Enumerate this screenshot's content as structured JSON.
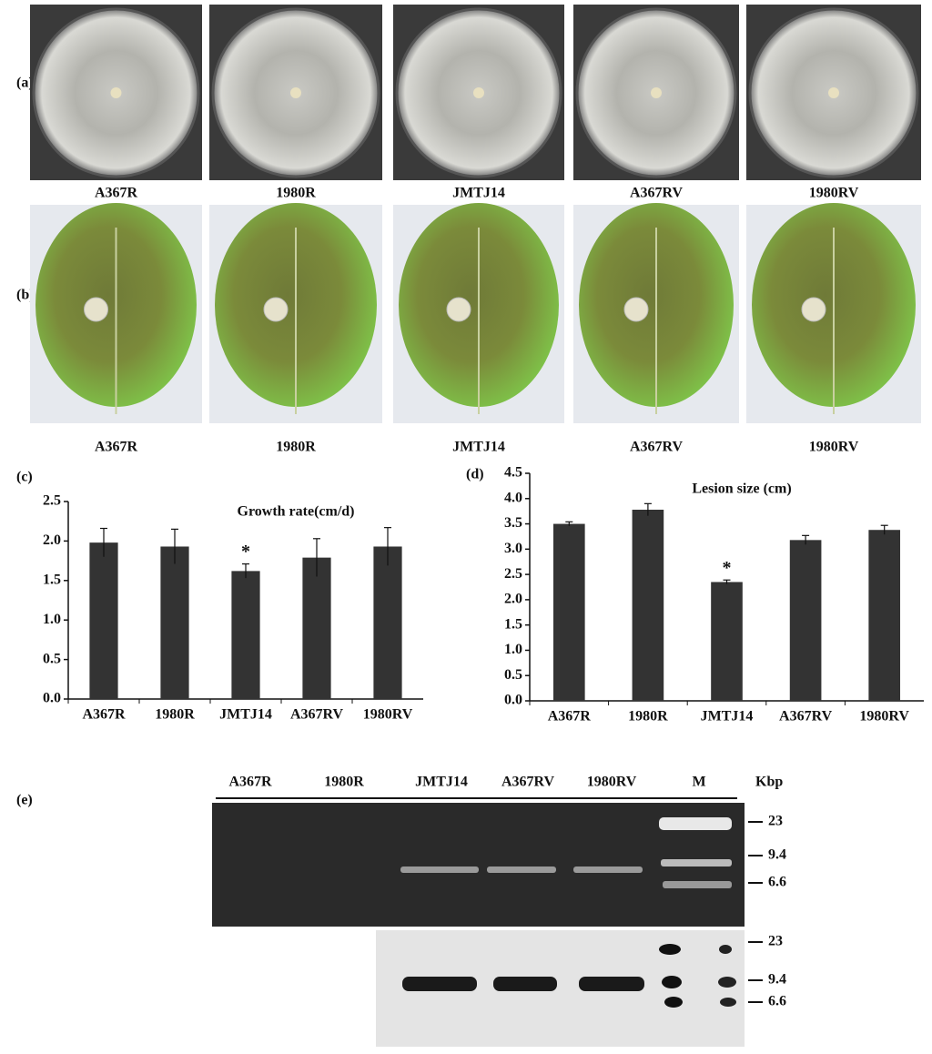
{
  "panels": {
    "a": {
      "label": "(a)",
      "strains": [
        "A367R",
        "1980R",
        "JMTJ14",
        "A367RV",
        "1980RV"
      ]
    },
    "b": {
      "label": "(b)",
      "strains": [
        "A367R",
        "1980R",
        "JMTJ14",
        "A367RV",
        "1980RV"
      ]
    },
    "e": {
      "label": "(e)",
      "lanes": [
        "A367R",
        "1980R",
        "JMTJ14",
        "A367RV",
        "1980RV",
        "M"
      ],
      "unit": "Kbp",
      "top_sizes": [
        "23",
        "9.4",
        "6.6"
      ],
      "bottom_sizes": [
        "23",
        "9.4",
        "6.6"
      ]
    }
  },
  "chart_data": [
    {
      "type": "bar",
      "panel_label": "(c)",
      "title": "Growth rate(cm/d)",
      "categories": [
        "A367R",
        "1980R",
        "JMTJ14",
        "A367RV",
        "1980RV"
      ],
      "values": [
        1.98,
        1.93,
        1.62,
        1.79,
        1.93
      ],
      "errors": [
        0.18,
        0.22,
        0.09,
        0.24,
        0.24
      ],
      "color": "#333333",
      "annotations": [
        {
          "text": "*",
          "category": "JMTJ14"
        }
      ],
      "ylim": [
        0,
        2.5
      ],
      "yticks": [
        {
          "value": 0,
          "label": "0.0"
        },
        0.5,
        {
          "value": 1,
          "label": "1.0"
        },
        1.5,
        {
          "value": 2,
          "label": "2.0"
        },
        2.5
      ]
    },
    {
      "type": "bar",
      "panel_label": "(d)",
      "title": "Lesion size (cm)",
      "categories": [
        "A367R",
        "1980R",
        "JMTJ14",
        "A367RV",
        "1980RV"
      ],
      "values": [
        3.5,
        3.78,
        2.35,
        3.18,
        3.38
      ],
      "errors": [
        0.04,
        0.12,
        0.04,
        0.09,
        0.09
      ],
      "color": "#333333",
      "annotations": [
        {
          "text": "*",
          "category": "JMTJ14"
        }
      ],
      "ylim": [
        0,
        4.5
      ],
      "yticks": [
        {
          "value": 0,
          "label": "0.0"
        },
        0.5,
        {
          "value": 1,
          "label": "1.0"
        },
        1.5,
        {
          "value": 2,
          "label": "2.0"
        },
        2.5,
        {
          "value": 3,
          "label": "3.0"
        },
        3.5,
        {
          "value": 4,
          "label": "4.0"
        },
        4.5
      ]
    }
  ]
}
